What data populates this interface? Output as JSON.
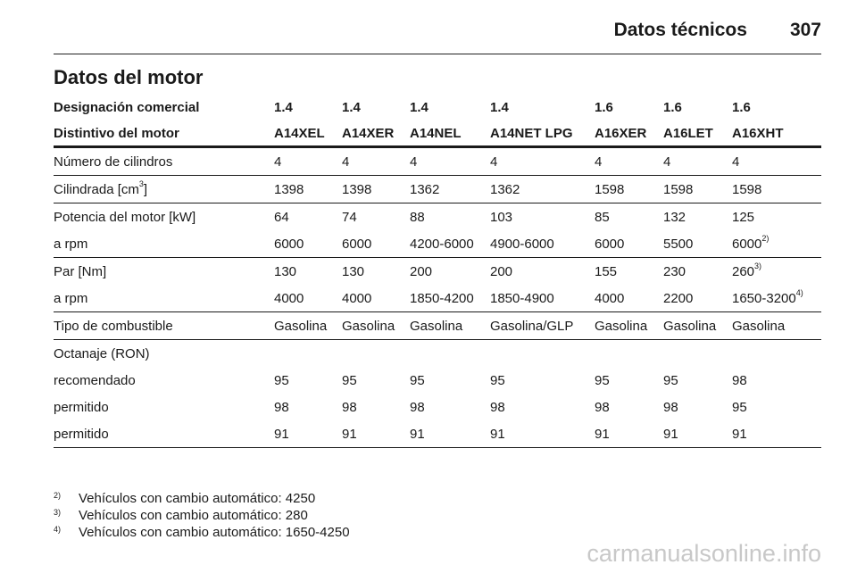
{
  "header": {
    "title": "Datos técnicos",
    "page": "307"
  },
  "section_title": "Datos del motor",
  "table": {
    "designation_label": "Designación comercial",
    "designations": [
      "1.4",
      "1.4",
      "1.4",
      "1.4",
      "1.6",
      "1.6",
      "1.6"
    ],
    "engine_label": "Distintivo del motor",
    "engines": [
      "A14XEL",
      "A14XER",
      "A14NEL",
      "A14NET LPG",
      "A16XER",
      "A16LET",
      "A16XHT"
    ],
    "rows": [
      {
        "label": "Número de cilindros",
        "values": [
          "4",
          "4",
          "4",
          "4",
          "4",
          "4",
          "4"
        ],
        "sep": true
      },
      {
        "label": "Cilindrada [cm",
        "label_sup": "3",
        "label_tail": "]",
        "values": [
          "1398",
          "1398",
          "1362",
          "1362",
          "1598",
          "1598",
          "1598"
        ],
        "sep": true
      },
      {
        "label": "Potencia del motor [kW]",
        "values": [
          "64",
          "74",
          "88",
          "103",
          "85",
          "132",
          "125"
        ],
        "sep": false
      },
      {
        "label": "a rpm",
        "values": [
          "6000",
          "6000",
          "4200-6000",
          "4900-6000",
          "6000",
          "5500",
          "6000"
        ],
        "sup": [
          "",
          "",
          "",
          "",
          "",
          "",
          "2)"
        ],
        "sep": true
      },
      {
        "label": "Par [Nm]",
        "values": [
          "130",
          "130",
          "200",
          "200",
          "155",
          "230",
          "260"
        ],
        "sup": [
          "",
          "",
          "",
          "",
          "",
          "",
          "3)"
        ],
        "sep": false
      },
      {
        "label": "a rpm",
        "values": [
          "4000",
          "4000",
          "1850-4200",
          "1850-4900",
          "4000",
          "2200",
          "1650-3200"
        ],
        "sup": [
          "",
          "",
          "",
          "",
          "",
          "",
          "4)"
        ],
        "sep": true
      },
      {
        "label": "Tipo de combustible",
        "values": [
          "Gasolina",
          "Gasolina",
          "Gasolina",
          "Gasolina/GLP",
          "Gasolina",
          "Gasolina",
          "Gasolina"
        ],
        "sep": true
      },
      {
        "label": "Octanaje (RON)",
        "values": [
          "",
          "",
          "",
          "",
          "",
          "",
          ""
        ],
        "sep": false
      },
      {
        "label": "recomendado",
        "values": [
          "95",
          "95",
          "95",
          "95",
          "95",
          "95",
          "98"
        ],
        "sep": false
      },
      {
        "label": "permitido",
        "values": [
          "98",
          "98",
          "98",
          "98",
          "98",
          "98",
          "95"
        ],
        "sep": false
      },
      {
        "label": "permitido",
        "values": [
          "91",
          "91",
          "91",
          "91",
          "91",
          "91",
          "91"
        ],
        "sep": true
      }
    ]
  },
  "footnotes": [
    {
      "mark": "2)",
      "text": "Vehículos con cambio automático: 4250"
    },
    {
      "mark": "3)",
      "text": "Vehículos con cambio automático: 280"
    },
    {
      "mark": "4)",
      "text": "Vehículos con cambio automático: 1650-4250"
    }
  ],
  "watermark": "carmanualsonline.info"
}
